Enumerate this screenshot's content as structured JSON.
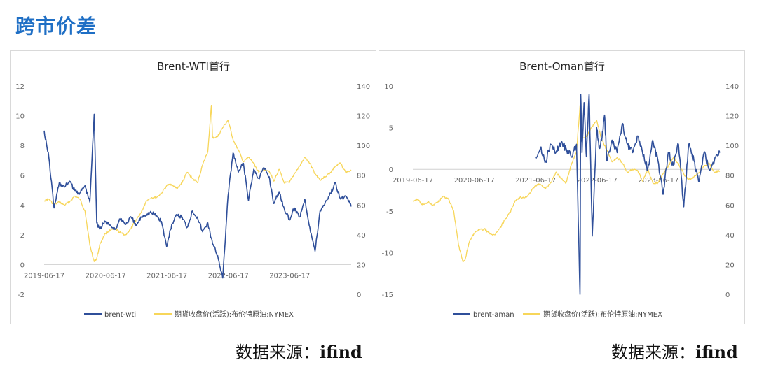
{
  "page_title": "跨市价差",
  "sources": [
    {
      "label": "数据来源：",
      "value": "ifind"
    },
    {
      "label": "数据来源：",
      "value": "ifind"
    }
  ],
  "colors": {
    "spread": "#2f4f9a",
    "price": "#f7d65a",
    "title": "#1f6fc5"
  },
  "chart_data": [
    {
      "type": "line",
      "title": "Brent-WTI首行",
      "x_ticks": [
        "2019-06-17",
        "2020-06-17",
        "2021-06-17",
        "2022-06-17",
        "2023-06-17"
      ],
      "x_range": [
        "2019-06-17",
        "2024-06-17"
      ],
      "y_left": {
        "ticks": [
          "-2",
          "0",
          "2",
          "4",
          "6",
          "8",
          "10",
          "12"
        ],
        "range": [
          -2,
          12
        ]
      },
      "y_right": {
        "ticks": [
          "0",
          "20",
          "40",
          "60",
          "80",
          "100",
          "120",
          "140"
        ],
        "range": [
          0,
          140
        ]
      },
      "legend": [
        "brent-wti",
        "期货收盘价(活跃):布伦特原油:NYMEX"
      ],
      "series": [
        {
          "name": "brent-wti",
          "axis": "left",
          "x": [
            "2019-06-17",
            "2019-07-15",
            "2019-08-15",
            "2019-09-15",
            "2019-10-15",
            "2019-11-15",
            "2019-12-15",
            "2020-01-15",
            "2020-02-15",
            "2020-03-15",
            "2020-04-10",
            "2020-04-25",
            "2020-05-15",
            "2020-06-15",
            "2020-07-15",
            "2020-08-15",
            "2020-09-15",
            "2020-10-15",
            "2020-11-15",
            "2020-12-15",
            "2021-01-15",
            "2021-02-15",
            "2021-03-15",
            "2021-04-15",
            "2021-05-15",
            "2021-06-15",
            "2021-07-15",
            "2021-08-15",
            "2021-09-15",
            "2021-10-15",
            "2021-11-15",
            "2021-12-15",
            "2022-01-15",
            "2022-02-15",
            "2022-03-15",
            "2022-04-15",
            "2022-05-15",
            "2022-06-15",
            "2022-07-15",
            "2022-08-15",
            "2022-09-15",
            "2022-10-15",
            "2022-11-15",
            "2022-12-15",
            "2023-01-15",
            "2023-02-15",
            "2023-03-15",
            "2023-04-15",
            "2023-05-15",
            "2023-06-15",
            "2023-07-15",
            "2023-08-15",
            "2023-09-15",
            "2023-10-15",
            "2023-11-15",
            "2023-12-15",
            "2024-01-15",
            "2024-02-15",
            "2024-03-15",
            "2024-04-15",
            "2024-05-15",
            "2024-06-17"
          ],
          "y": [
            9.0,
            7.2,
            3.8,
            5.5,
            5.2,
            5.6,
            5.0,
            4.8,
            5.3,
            4.2,
            10.1,
            2.8,
            2.4,
            2.9,
            2.6,
            2.4,
            3.1,
            2.7,
            3.2,
            2.6,
            3.2,
            3.4,
            3.5,
            3.3,
            2.9,
            1.2,
            2.7,
            3.3,
            3.2,
            2.5,
            3.6,
            3.2,
            2.2,
            2.8,
            1.4,
            0.6,
            -0.9,
            4.6,
            7.5,
            6.2,
            6.8,
            4.3,
            6.4,
            5.8,
            6.5,
            5.9,
            4.1,
            4.9,
            3.8,
            3.0,
            3.8,
            3.2,
            4.4,
            2.5,
            0.9,
            3.6,
            4.2,
            4.8,
            5.5,
            4.4,
            4.6,
            3.9
          ]
        },
        {
          "name": "期货收盘价(活跃):布伦特原油:NYMEX",
          "axis": "right",
          "x": [
            "2019-06-17",
            "2019-07-15",
            "2019-08-15",
            "2019-09-15",
            "2019-10-15",
            "2019-11-15",
            "2019-12-15",
            "2020-01-15",
            "2020-02-15",
            "2020-03-15",
            "2020-04-10",
            "2020-04-25",
            "2020-05-15",
            "2020-06-15",
            "2020-07-15",
            "2020-08-15",
            "2020-09-15",
            "2020-10-15",
            "2020-11-15",
            "2020-12-15",
            "2021-01-15",
            "2021-02-15",
            "2021-03-15",
            "2021-04-15",
            "2021-05-15",
            "2021-06-15",
            "2021-07-15",
            "2021-08-15",
            "2021-09-15",
            "2021-10-15",
            "2021-11-15",
            "2021-12-15",
            "2022-01-15",
            "2022-02-15",
            "2022-03-08",
            "2022-03-15",
            "2022-04-15",
            "2022-05-15",
            "2022-06-15",
            "2022-07-15",
            "2022-08-15",
            "2022-09-15",
            "2022-10-15",
            "2022-11-15",
            "2022-12-15",
            "2023-01-15",
            "2023-02-15",
            "2023-03-15",
            "2023-04-15",
            "2023-05-15",
            "2023-06-15",
            "2023-07-15",
            "2023-08-15",
            "2023-09-15",
            "2023-10-15",
            "2023-11-15",
            "2023-12-15",
            "2024-01-15",
            "2024-02-15",
            "2024-03-15",
            "2024-04-15",
            "2024-05-15",
            "2024-06-17"
          ],
          "y": [
            63,
            64,
            60,
            62,
            60,
            62,
            66,
            64,
            56,
            33,
            22,
            24,
            34,
            41,
            43,
            44,
            41,
            40,
            44,
            50,
            55,
            63,
            65,
            65,
            68,
            73,
            74,
            71,
            75,
            82,
            78,
            75,
            87,
            96,
            127,
            105,
            106,
            112,
            117,
            104,
            97,
            89,
            92,
            88,
            82,
            84,
            83,
            76,
            84,
            75,
            75,
            81,
            86,
            92,
            88,
            81,
            77,
            79,
            82,
            86,
            88,
            82,
            83
          ]
        }
      ]
    },
    {
      "type": "line",
      "title": "Brent-Oman首行",
      "x_ticks": [
        "2019-06-17",
        "2020-06-17",
        "2021-06-17",
        "2022-06-17",
        "2023-06-17"
      ],
      "x_range": [
        "2019-06-17",
        "2024-06-17"
      ],
      "y_left": {
        "ticks": [
          "-15",
          "-10",
          "-5",
          "0",
          "5",
          "10"
        ],
        "range": [
          -15,
          10
        ]
      },
      "y_right": {
        "ticks": [
          "0",
          "20",
          "40",
          "60",
          "80",
          "100",
          "120",
          "140"
        ],
        "range": [
          0,
          140
        ]
      },
      "legend": [
        "brent-aman",
        "期货收盘价(活跃):布伦特原油:NYMEX"
      ],
      "series": [
        {
          "name": "brent-aman",
          "axis": "left",
          "x": [
            "2021-06-15",
            "2021-07-15",
            "2021-08-15",
            "2021-09-15",
            "2021-10-15",
            "2021-11-15",
            "2021-12-15",
            "2022-01-15",
            "2022-02-15",
            "2022-03-08",
            "2022-03-12",
            "2022-03-20",
            "2022-04-01",
            "2022-04-15",
            "2022-05-01",
            "2022-05-20",
            "2022-06-15",
            "2022-07-01",
            "2022-07-15",
            "2022-08-01",
            "2022-08-15",
            "2022-09-15",
            "2022-10-15",
            "2022-11-15",
            "2022-12-15",
            "2023-01-15",
            "2023-02-15",
            "2023-03-15",
            "2023-04-15",
            "2023-05-15",
            "2023-06-15",
            "2023-07-15",
            "2023-08-15",
            "2023-09-15",
            "2023-10-15",
            "2023-11-15",
            "2023-12-15",
            "2024-01-15",
            "2024-02-15",
            "2024-03-15",
            "2024-04-15",
            "2024-05-15",
            "2024-06-17"
          ],
          "y": [
            1.5,
            2.5,
            1.0,
            3.0,
            2.0,
            3.2,
            2.5,
            1.5,
            3.0,
            -15.0,
            9.0,
            2.0,
            8.0,
            1.5,
            9.0,
            -8.0,
            5.0,
            2.5,
            3.5,
            6.5,
            1.0,
            3.5,
            2.0,
            5.5,
            3.0,
            2.0,
            4.0,
            2.0,
            0.0,
            3.5,
            1.0,
            -3.0,
            2.0,
            0.5,
            3.0,
            -4.5,
            3.0,
            1.0,
            -1.5,
            2.0,
            0.0,
            1.0,
            2.0
          ]
        },
        {
          "name": "期货收盘价(活跃):布伦特原油:NYMEX",
          "axis": "right",
          "x": [
            "2019-06-17",
            "2019-07-15",
            "2019-08-15",
            "2019-09-15",
            "2019-10-15",
            "2019-11-15",
            "2019-12-15",
            "2020-01-15",
            "2020-02-15",
            "2020-03-15",
            "2020-04-10",
            "2020-04-25",
            "2020-05-15",
            "2020-06-15",
            "2020-07-15",
            "2020-08-15",
            "2020-09-15",
            "2020-10-15",
            "2020-11-15",
            "2020-12-15",
            "2021-01-15",
            "2021-02-15",
            "2021-03-15",
            "2021-04-15",
            "2021-05-15",
            "2021-06-15",
            "2021-07-15",
            "2021-08-15",
            "2021-09-15",
            "2021-10-15",
            "2021-11-15",
            "2021-12-15",
            "2022-01-15",
            "2022-02-15",
            "2022-03-08",
            "2022-03-15",
            "2022-04-15",
            "2022-05-15",
            "2022-06-15",
            "2022-07-15",
            "2022-08-15",
            "2022-09-15",
            "2022-10-15",
            "2022-11-15",
            "2022-12-15",
            "2023-01-15",
            "2023-02-15",
            "2023-03-15",
            "2023-04-15",
            "2023-05-15",
            "2023-06-15",
            "2023-07-15",
            "2023-08-15",
            "2023-09-15",
            "2023-10-15",
            "2023-11-15",
            "2023-12-15",
            "2024-01-15",
            "2024-02-15",
            "2024-03-15",
            "2024-04-15",
            "2024-05-15",
            "2024-06-17"
          ],
          "y": [
            63,
            64,
            60,
            62,
            60,
            62,
            66,
            64,
            56,
            33,
            22,
            24,
            34,
            41,
            43,
            44,
            41,
            40,
            44,
            50,
            55,
            63,
            65,
            65,
            68,
            73,
            74,
            71,
            75,
            82,
            78,
            75,
            87,
            96,
            127,
            105,
            106,
            112,
            117,
            104,
            97,
            89,
            92,
            88,
            82,
            84,
            83,
            76,
            84,
            75,
            75,
            81,
            86,
            92,
            88,
            81,
            77,
            79,
            82,
            86,
            88,
            82,
            83
          ]
        }
      ]
    }
  ]
}
